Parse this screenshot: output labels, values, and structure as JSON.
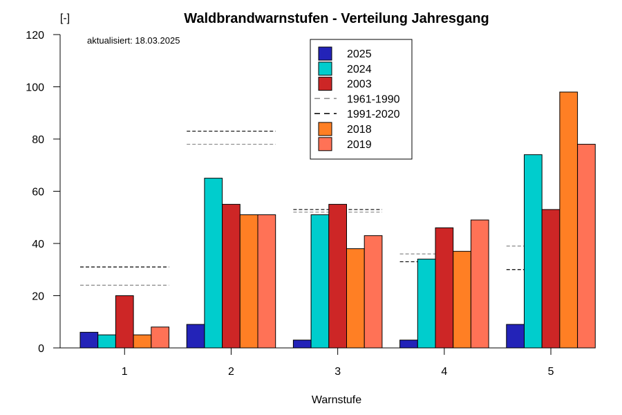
{
  "chart_data": {
    "type": "bar",
    "title": "Waldbrandwarnstufen - Verteilung Jahresgang",
    "subtitle": "aktualisiert: 18.03.2025",
    "xlabel": "Warnstufe",
    "ylabel": "[-]",
    "ylim": [
      0,
      120
    ],
    "yticks": [
      0,
      20,
      40,
      60,
      80,
      100,
      120
    ],
    "categories": [
      "1",
      "2",
      "3",
      "4",
      "5"
    ],
    "grid": false,
    "legend_position": "top-center",
    "series": [
      {
        "name": "2025",
        "color": "#2323B8",
        "values": [
          6,
          9,
          3,
          3,
          9
        ]
      },
      {
        "name": "2024",
        "color": "#00CDCD",
        "values": [
          5,
          65,
          51,
          34,
          74
        ]
      },
      {
        "name": "2003",
        "color": "#CD2626",
        "values": [
          20,
          55,
          55,
          46,
          53
        ]
      },
      {
        "name": "2018",
        "color": "#FF7F24",
        "values": [
          5,
          51,
          38,
          37,
          98
        ]
      },
      {
        "name": "2019",
        "color": "#FF7256",
        "values": [
          8,
          51,
          43,
          49,
          78
        ]
      }
    ],
    "reference_lines": [
      {
        "name": "1961-1990",
        "color": "#888888",
        "style": "dashed",
        "values": [
          24,
          78,
          52,
          36,
          39
        ]
      },
      {
        "name": "1991-2020",
        "color": "#000000",
        "style": "dashed",
        "values": [
          31,
          83,
          53,
          33,
          30
        ]
      }
    ],
    "legend_order": [
      "2025",
      "2024",
      "2003",
      "1961-1990",
      "1991-2020",
      "2018",
      "2019"
    ]
  }
}
